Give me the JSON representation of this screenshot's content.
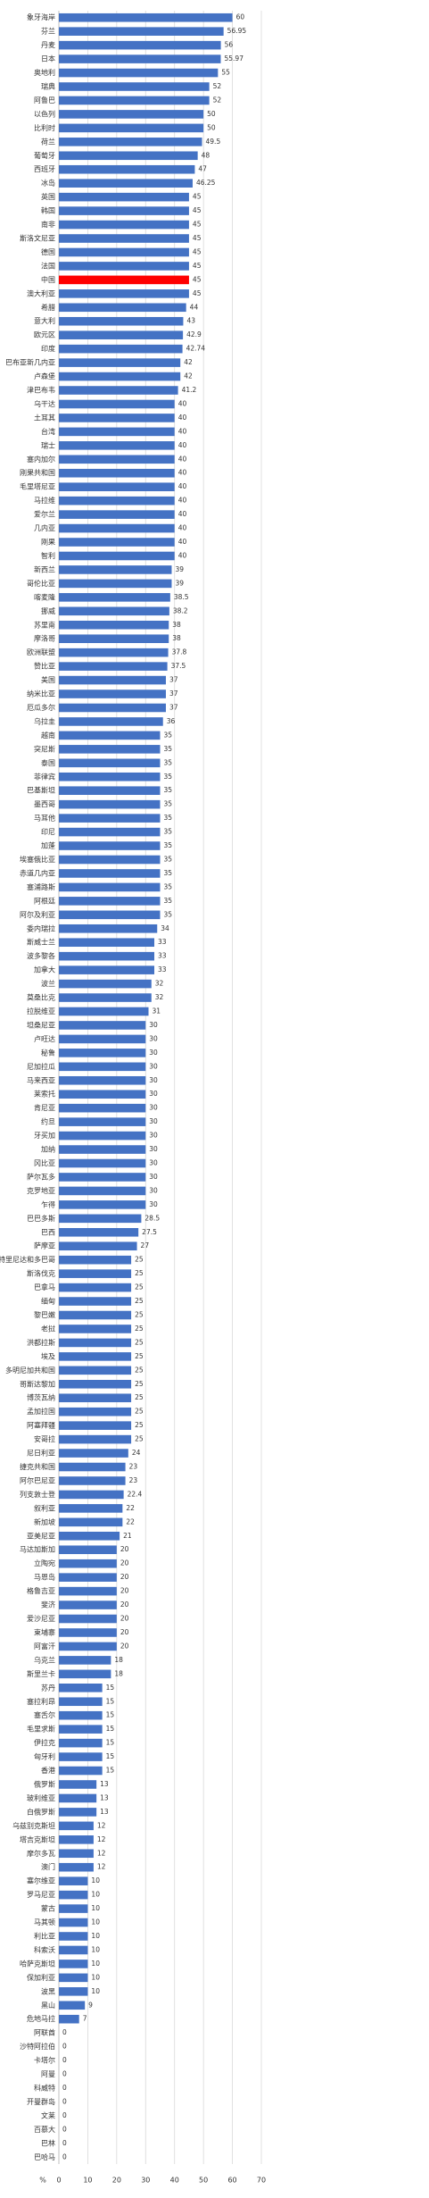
{
  "chart_data": {
    "type": "hbar",
    "categories": [
      "象牙海岸",
      "芬兰",
      "丹麦",
      "日本",
      "奥地利",
      "瑞典",
      "阿鲁巴",
      "以色列",
      "比利时",
      "荷兰",
      "葡萄牙",
      "西班牙",
      "冰岛",
      "英国",
      "韩国",
      "南非",
      "斯洛文尼亚",
      "德国",
      "法国",
      "中国",
      "澳大利亚",
      "希腊",
      "意大利",
      "欧元区",
      "印度",
      "巴布亚新几内亚",
      "卢森堡",
      "津巴布韦",
      "乌干达",
      "土耳其",
      "台湾",
      "瑞士",
      "塞内加尔",
      "刚果共和国",
      "毛里塔尼亚",
      "马拉维",
      "爱尔兰",
      "几内亚",
      "刚果",
      "智利",
      "新西兰",
      "哥伦比亚",
      "喀麦隆",
      "挪威",
      "苏里南",
      "摩洛哥",
      "欧洲联盟",
      "赞比亚",
      "美国",
      "纳米比亚",
      "厄瓜多尔",
      "乌拉圭",
      "越南",
      "突尼斯",
      "泰国",
      "菲律宾",
      "巴基斯坦",
      "墨西哥",
      "马耳他",
      "印尼",
      "加蓬",
      "埃塞俄比亚",
      "赤道几内亚",
      "塞浦路斯",
      "阿根廷",
      "阿尔及利亚",
      "委内瑞拉",
      "斯威士兰",
      "波多黎各",
      "加拿大",
      "波兰",
      "莫桑比克",
      "拉脱维亚",
      "坦桑尼亚",
      "卢旺达",
      "秘鲁",
      "尼加拉瓜",
      "马来西亚",
      "莱索托",
      "肯尼亚",
      "约旦",
      "牙买加",
      "加纳",
      "冈比亚",
      "萨尔瓦多",
      "克罗地亚",
      "乍得",
      "巴巴多斯",
      "巴西",
      "萨摩亚",
      "特里尼达和多巴哥",
      "斯洛伐克",
      "巴拿马",
      "缅甸",
      "黎巴嫩",
      "老挝",
      "洪都拉斯",
      "埃及",
      "多明尼加共和国",
      "哥斯达黎加",
      "博茨瓦纳",
      "孟加拉国",
      "阿塞拜疆",
      "安哥拉",
      "尼日利亚",
      "捷克共和国",
      "阿尔巴尼亚",
      "列支敦士登",
      "叙利亚",
      "新加坡",
      "亚美尼亚",
      "马达加斯加",
      "立陶宛",
      "马恩岛",
      "格鲁吉亚",
      "斐济",
      "爱沙尼亚",
      "柬埔寨",
      "阿富汗",
      "乌克兰",
      "斯里兰卡",
      "苏丹",
      "塞拉利昂",
      "塞舌尔",
      "毛里求斯",
      "伊拉克",
      "匈牙利",
      "香港",
      "俄罗斯",
      "玻利维亚",
      "白俄罗斯",
      "乌兹别克斯坦",
      "塔吉克斯坦",
      "摩尔多瓦",
      "澳门",
      "塞尔维亚",
      "罗马尼亚",
      "蒙古",
      "马其顿",
      "利比亚",
      "科索沃",
      "哈萨克斯坦",
      "保加利亚",
      "波黑",
      "黑山",
      "危地马拉",
      "阿联酋",
      "沙特阿拉伯",
      "卡塔尔",
      "阿曼",
      "科威特",
      "开曼群岛",
      "文莱",
      "百慕大",
      "巴林",
      "巴哈马"
    ],
    "values": [
      60,
      56.95,
      56,
      55.97,
      55,
      52,
      52,
      50,
      50,
      49.5,
      48,
      47,
      46.25,
      45,
      45,
      45,
      45,
      45,
      45,
      45,
      45,
      44,
      43,
      42.9,
      42.74,
      42,
      42,
      41.2,
      40,
      40,
      40,
      40,
      40,
      40,
      40,
      40,
      40,
      40,
      40,
      40,
      39,
      39,
      38.5,
      38.2,
      38,
      38,
      37.8,
      37.5,
      37,
      37,
      37,
      36,
      35,
      35,
      35,
      35,
      35,
      35,
      35,
      35,
      35,
      35,
      35,
      35,
      35,
      35,
      34,
      33,
      33,
      33,
      32,
      32,
      31,
      30,
      30,
      30,
      30,
      30,
      30,
      30,
      30,
      30,
      30,
      30,
      30,
      30,
      30,
      28.5,
      27.5,
      27,
      25,
      25,
      25,
      25,
      25,
      25,
      25,
      25,
      25,
      25,
      25,
      25,
      25,
      25,
      24,
      23,
      23,
      22.4,
      22,
      22,
      21,
      20,
      20,
      20,
      20,
      20,
      20,
      20,
      20,
      18,
      18,
      15,
      15,
      15,
      15,
      15,
      15,
      15,
      13,
      13,
      13,
      12,
      12,
      12,
      12,
      10,
      10,
      10,
      10,
      10,
      10,
      10,
      10,
      10,
      9,
      7,
      0,
      0,
      0,
      0,
      0,
      0,
      0,
      0,
      0,
      0
    ],
    "color": "#4472c4",
    "highlight": {
      "category": "中国",
      "color": "#ff0000"
    },
    "xlabel": "%",
    "xlim": [
      0,
      70
    ],
    "xticks": [
      0,
      10,
      20,
      30,
      40,
      50,
      60,
      70
    ],
    "grid": true
  }
}
